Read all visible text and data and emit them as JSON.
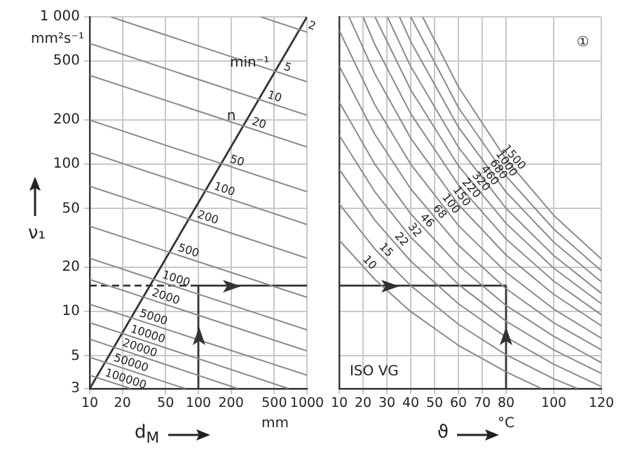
{
  "chart_data": [
    {
      "type": "line",
      "xlabel": "d$_{M}$",
      "ylabel": "ν₁",
      "annotations": [
        "mm²s⁻¹",
        "mm",
        {
          "text": "min⁻¹",
          "x": 296,
          "y": 486
        },
        {
          "text": "n",
          "x": 201,
          "y": 211
        }
      ],
      "log": "xy",
      "xlim": [
        10,
        1000
      ],
      "ylim": [
        3,
        1000
      ],
      "xticks": [
        10,
        20,
        50,
        100,
        200,
        500,
        {
          "value": 1000,
          "label": "1000"
        }
      ],
      "yticks": [
        3,
        5,
        10,
        20,
        50,
        100,
        200,
        500,
        {
          "value": 1000,
          "label": "1 000"
        }
      ],
      "grid": true,
      "legend": false,
      "series": [
        {
          "name": "2",
          "color": "#8a8a8a",
          "x": [
            376,
            1000
          ],
          "values": [
            1000,
            788
          ]
        },
        {
          "name": "5",
          "color": "#8a8a8a",
          "x": [
            15.6,
            1000
          ],
          "values": [
            1000,
            363
          ]
        },
        {
          "name": "10",
          "color": "#8a8a8a",
          "x": [
            10,
            1000
          ],
          "values": [
            659,
            215
          ]
        },
        {
          "name": "20",
          "color": "#8a8a8a",
          "x": [
            10,
            1000
          ],
          "values": [
            401,
            131
          ]
        },
        {
          "name": "50",
          "color": "#8a8a8a",
          "x": [
            10,
            1000
          ],
          "values": [
            199,
            65
          ]
        },
        {
          "name": "100",
          "color": "#8a8a8a",
          "x": [
            10,
            1000
          ],
          "values": [
            120,
            39
          ]
        },
        {
          "name": "200",
          "color": "#8a8a8a",
          "x": [
            10,
            1000
          ],
          "values": [
            71,
            23
          ]
        },
        {
          "name": "500",
          "color": "#8a8a8a",
          "x": [
            10,
            1000
          ],
          "values": [
            38,
            12.5
          ]
        },
        {
          "name": "1000",
          "color": "#8a8a8a",
          "x": [
            10,
            1000
          ],
          "values": [
            23,
            7.5
          ]
        },
        {
          "name": "2000",
          "color": "#8a8a8a",
          "x": [
            10,
            1000
          ],
          "values": [
            16.5,
            5.4
          ]
        },
        {
          "name": "5000",
          "color": "#8a8a8a",
          "x": [
            10,
            1000
          ],
          "values": [
            11.2,
            3.7
          ]
        },
        {
          "name": "10000",
          "color": "#8a8a8a",
          "x": [
            10,
            679
          ],
          "values": [
            8.4,
            3
          ]
        },
        {
          "name": "20000",
          "color": "#8a8a8a",
          "x": [
            10,
            231
          ],
          "values": [
            6.5,
            3
          ]
        },
        {
          "name": "50000",
          "color": "#8a8a8a",
          "x": [
            10,
            76
          ],
          "values": [
            4.9,
            3
          ]
        },
        {
          "name": "100000",
          "color": "#8a8a8a",
          "x": [
            10,
            24
          ],
          "values": [
            3.7,
            3
          ]
        },
        {
          "color": "#333333",
          "x": [
            10,
            1000
          ],
          "values": [
            3,
            1000
          ]
        },
        {
          "color": "#333333",
          "line_style": "dashed",
          "x": [
            10,
            100
          ],
          "values": [
            15,
            15
          ]
        },
        {
          "color": "#333333",
          "x": [
            100,
            100,
            1000
          ],
          "values": [
            3,
            15,
            15
          ]
        }
      ]
    },
    {
      "type": "line",
      "xlabel": "ϑ",
      "annotations": [
        "①",
        "ISO VG",
        "°C"
      ],
      "log": "y",
      "xlim": [
        10,
        120
      ],
      "ylim": [
        3,
        1000
      ],
      "xticks": [
        10,
        20,
        30,
        40,
        50,
        60,
        70,
        80,
        100,
        120
      ],
      "yticks": [
        3,
        5,
        10,
        20,
        50,
        100,
        200,
        500,
        1000
      ],
      "tick_labels": "x",
      "grid": true,
      "legend": false,
      "series": [
        {
          "name": "10",
          "color": "#8a8a8a",
          "x": [
            10,
            25,
            40,
            60,
            80,
            95
          ],
          "values": [
            30.5,
            16.5,
            10,
            5.9,
            3.9,
            3
          ]
        },
        {
          "name": "15",
          "color": "#8a8a8a",
          "x": [
            10,
            25,
            40,
            60,
            80,
            100,
            110
          ],
          "values": [
            53.8,
            26.5,
            15,
            8.2,
            5.1,
            3.5,
            3
          ]
        },
        {
          "name": "22",
          "color": "#8a8a8a",
          "x": [
            10,
            25,
            40,
            60,
            80,
            100,
            120
          ],
          "values": [
            92.3,
            41.6,
            22,
            11.3,
            6.7,
            4.4,
            3.1
          ]
        },
        {
          "name": "32",
          "color": "#8a8a8a",
          "x": [
            10,
            25,
            40,
            60,
            80,
            100,
            120
          ],
          "values": [
            157,
            64.8,
            32,
            15.3,
            8.6,
            5.5,
            3.8
          ]
        },
        {
          "name": "46",
          "color": "#8a8a8a",
          "x": [
            10,
            25,
            40,
            60,
            80,
            100,
            120
          ],
          "values": [
            264,
            99.6,
            46,
            20.6,
            11,
            6.8,
            4.5
          ]
        },
        {
          "name": "68",
          "color": "#8a8a8a",
          "x": [
            10,
            25,
            40,
            60,
            80,
            100,
            120
          ],
          "values": [
            464,
            159,
            68,
            28.2,
            14.3,
            8.4,
            5.5
          ]
        },
        {
          "name": "100",
          "color": "#8a8a8a",
          "x": [
            10,
            25,
            40,
            60,
            80,
            100,
            120
          ],
          "values": [
            809,
            252,
            100,
            38.4,
            18.5,
            10.4,
            6.6
          ]
        },
        {
          "name": "150",
          "color": "#8a8a8a",
          "x": [
            14.1,
            25,
            40,
            60,
            80,
            100,
            120
          ],
          "values": [
            1000,
            409,
            150,
            53.3,
            24.2,
            13.1,
            8
          ]
        },
        {
          "name": "220",
          "color": "#8a8a8a",
          "x": [
            20,
            25,
            40,
            60,
            80,
            100,
            120
          ],
          "values": [
            1000,
            645,
            220,
            72.4,
            31.1,
            16.1,
            9.5
          ]
        },
        {
          "name": "320",
          "color": "#8a8a8a",
          "x": [
            25,
            40,
            60,
            80,
            100,
            120
          ],
          "values": [
            1000,
            320,
            97.7,
            39.7,
            19.7,
            11.3
          ]
        },
        {
          "name": "460",
          "color": "#8a8a8a",
          "x": [
            30.2,
            40,
            60,
            80,
            100,
            120
          ],
          "values": [
            1000,
            460,
            130.5,
            50.2,
            24,
            13.3
          ]
        },
        {
          "name": "680",
          "color": "#8a8a8a",
          "x": [
            35.3,
            40,
            60,
            80,
            100,
            120
          ],
          "values": [
            1000,
            680,
            178.5,
            64.7,
            29.6,
            15.9
          ]
        },
        {
          "name": "1000",
          "color": "#8a8a8a",
          "x": [
            40,
            60,
            80,
            100,
            120
          ],
          "values": [
            1000,
            242.6,
            83.1,
            36.3,
            18.9
          ]
        },
        {
          "name": "1500",
          "color": "#8a8a8a",
          "x": [
            45,
            60,
            80,
            100,
            120
          ],
          "values": [
            1000,
            335,
            108,
            45,
            22.7
          ]
        },
        {
          "color": "#333333",
          "x": [
            10,
            80
          ],
          "values": [
            15,
            15
          ]
        },
        {
          "color": "#333333",
          "x": [
            80,
            80
          ],
          "values": [
            3,
            15
          ]
        }
      ]
    }
  ]
}
